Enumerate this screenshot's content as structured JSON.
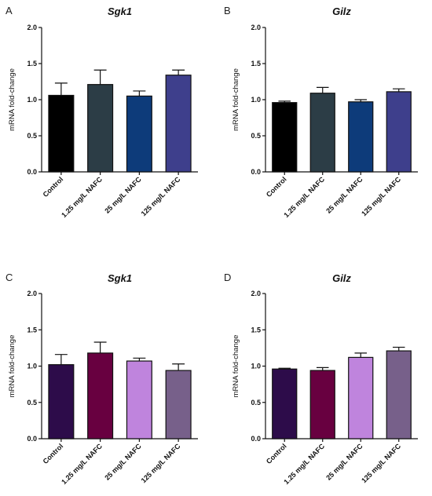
{
  "chart_data": [
    {
      "panel": "A",
      "type": "bar",
      "title": "Sgk1",
      "ylabel": "mRNA fold-change",
      "ylim": [
        0,
        2.0
      ],
      "yticks": [
        "0.0",
        "0.5",
        "1.0",
        "1.5",
        "2.0"
      ],
      "categories": [
        "Control",
        "1.25 mg/L NAFC",
        "25 mg/L NAFC",
        "125 mg/L NAFC"
      ],
      "values": [
        1.06,
        1.21,
        1.05,
        1.34
      ],
      "errors": [
        0.17,
        0.2,
        0.07,
        0.07
      ],
      "colors": [
        "#000000",
        "#2c3d46",
        "#0d3b7a",
        "#3e3f8c"
      ]
    },
    {
      "panel": "B",
      "type": "bar",
      "title": "Gilz",
      "ylabel": "mRNA fold-change",
      "ylim": [
        0,
        2.0
      ],
      "yticks": [
        "0.0",
        "0.5",
        "1.0",
        "1.5",
        "2.0"
      ],
      "categories": [
        "Control",
        "1.25 mg/L NAFC",
        "25 mg/L NAFC",
        "125 mg/L NAFC"
      ],
      "values": [
        0.96,
        1.09,
        0.97,
        1.11
      ],
      "errors": [
        0.02,
        0.08,
        0.03,
        0.04
      ],
      "colors": [
        "#000000",
        "#2c3d46",
        "#0d3b7a",
        "#3e3f8c"
      ]
    },
    {
      "panel": "C",
      "type": "bar",
      "title": "Sgk1",
      "ylabel": "mRNA fold-change",
      "ylim": [
        0,
        2.0
      ],
      "yticks": [
        "0.0",
        "0.5",
        "1.0",
        "1.5",
        "2.0"
      ],
      "categories": [
        "Control",
        "1.25 mg/L NAFC",
        "25 mg/L NAFC",
        "125 mg/L NAFC"
      ],
      "values": [
        1.02,
        1.18,
        1.07,
        0.94
      ],
      "errors": [
        0.14,
        0.15,
        0.04,
        0.09
      ],
      "colors": [
        "#2d0c4a",
        "#680040",
        "#bf84dd",
        "#77608a"
      ]
    },
    {
      "panel": "D",
      "type": "bar",
      "title": "Gilz",
      "ylabel": "mRNA fold-change",
      "ylim": [
        0,
        2.0
      ],
      "yticks": [
        "0.0",
        "0.5",
        "1.0",
        "1.5",
        "2.0"
      ],
      "categories": [
        "Control",
        "1.25 mg/L NAFC",
        "25 mg/L NAFC",
        "125 mg/L NAFC"
      ],
      "values": [
        0.96,
        0.94,
        1.12,
        1.21
      ],
      "errors": [
        0.01,
        0.04,
        0.06,
        0.05
      ],
      "colors": [
        "#2d0c4a",
        "#680040",
        "#bf84dd",
        "#77608a"
      ]
    }
  ]
}
